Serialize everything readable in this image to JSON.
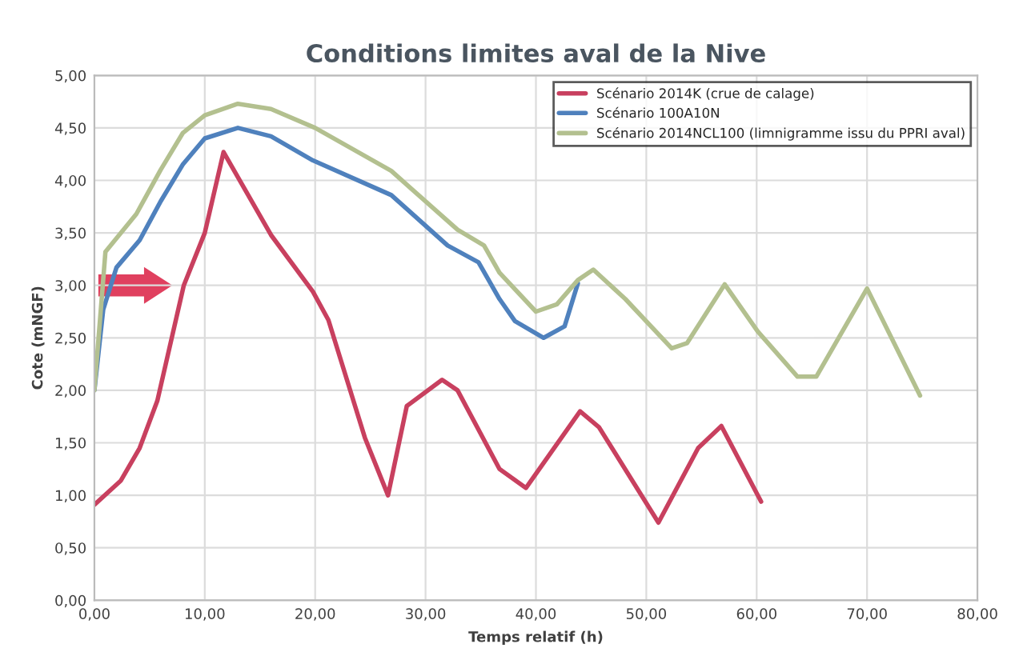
{
  "chart_data": {
    "type": "line",
    "title": "Conditions limites aval de la Nive",
    "xlabel": "Temps relatif (h)",
    "ylabel": "Cote (mNGF)",
    "xlim": [
      0,
      80
    ],
    "ylim": [
      0,
      5
    ],
    "xticks": [
      {
        "value": 0,
        "label": "0,00"
      },
      {
        "value": 10,
        "label": "10,00"
      },
      {
        "value": 20,
        "label": "20,00"
      },
      {
        "value": 30,
        "label": "30,00"
      },
      {
        "value": 40,
        "label": "40,00"
      },
      {
        "value": 50,
        "label": "50,00"
      },
      {
        "value": 60,
        "label": "60,00"
      },
      {
        "value": 70,
        "label": "70,00"
      },
      {
        "value": 80,
        "label": "80,00"
      }
    ],
    "yticks": [
      {
        "value": 0,
        "label": "0,00"
      },
      {
        "value": 0.5,
        "label": "0,50"
      },
      {
        "value": 1,
        "label": "1,00"
      },
      {
        "value": 1.5,
        "label": "1,50"
      },
      {
        "value": 2,
        "label": "2,00"
      },
      {
        "value": 2.5,
        "label": "2,50"
      },
      {
        "value": 3,
        "label": "3,00"
      },
      {
        "value": 3.5,
        "label": "3,50"
      },
      {
        "value": 4,
        "label": "4,00"
      },
      {
        "value": 4.5,
        "label": "4,50"
      },
      {
        "value": 5,
        "label": "5,00"
      }
    ],
    "grid": true,
    "legend": "top right",
    "marker": "none",
    "line_style": "solid",
    "series": [
      {
        "name": "Scénario 2014K (crue de calage)",
        "color": "#c8405f",
        "x": [
          0,
          2.4,
          4.1,
          5.7,
          8.1,
          10,
          11.7,
          16,
          19.8,
          21.2,
          24.5,
          26.6,
          28.3,
          31.5,
          32.9,
          36.7,
          39.1,
          44,
          45.7,
          51.1,
          54.7,
          56.8,
          60.4
        ],
        "values": [
          0.91,
          1.14,
          1.45,
          1.9,
          3.0,
          3.5,
          4.27,
          3.48,
          2.94,
          2.67,
          1.55,
          1.0,
          1.85,
          2.1,
          2.0,
          1.25,
          1.07,
          1.8,
          1.65,
          0.74,
          1.45,
          1.66,
          0.94
        ]
      },
      {
        "name": "Scénario 100A10N",
        "color": "#4f81bd",
        "x": [
          0,
          0.8,
          2,
          4.1,
          6,
          8,
          10,
          13,
          16,
          19.8,
          26.9,
          32,
          34.8,
          36.7,
          38.1,
          40.7,
          42.6,
          43.8
        ],
        "values": [
          2.0,
          2.77,
          3.17,
          3.43,
          3.8,
          4.15,
          4.4,
          4.5,
          4.42,
          4.19,
          3.86,
          3.38,
          3.22,
          2.87,
          2.66,
          2.5,
          2.61,
          3.02
        ]
      },
      {
        "name": "Scénario 2014NCL100 (limnigramme issu du PPRI aval)",
        "color": "#b3c08f",
        "x": [
          0,
          1,
          3.8,
          6,
          8,
          10,
          13,
          16,
          20,
          26.9,
          32.9,
          35.3,
          36.7,
          40,
          41.9,
          43.8,
          45.2,
          48.1,
          52.3,
          53.7,
          57.1,
          60.1,
          63.7,
          65.4,
          70,
          74.8
        ],
        "values": [
          2.0,
          3.32,
          3.68,
          4.1,
          4.45,
          4.62,
          4.73,
          4.68,
          4.5,
          4.09,
          3.53,
          3.38,
          3.12,
          2.75,
          2.82,
          3.05,
          3.15,
          2.87,
          2.4,
          2.45,
          3.01,
          2.56,
          2.13,
          2.13,
          2.97,
          1.95
        ]
      }
    ]
  }
}
